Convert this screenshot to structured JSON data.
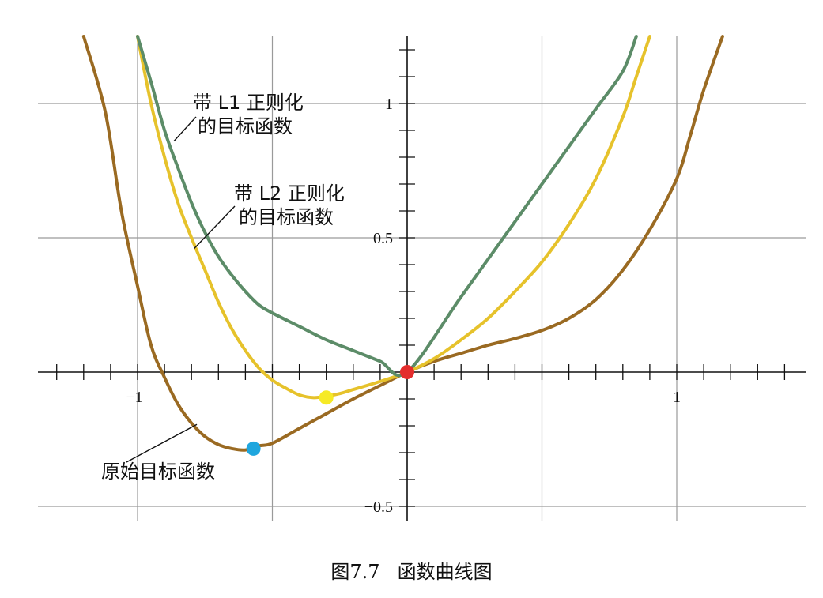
{
  "chart_data": {
    "type": "line",
    "title": "",
    "xlabel": "",
    "ylabel": "",
    "xlim": [
      -1.38,
      1.5
    ],
    "ylim": [
      -0.52,
      1.27
    ],
    "grid": true,
    "x_gridlines": [
      -1,
      -0.5,
      0,
      0.5,
      1
    ],
    "y_gridlines": [
      -0.5,
      0,
      0.5,
      1
    ],
    "x_tick_labels": [
      {
        "value": -1,
        "label": "−1"
      },
      {
        "value": 1,
        "label": "1"
      }
    ],
    "y_tick_labels": [
      {
        "value": 1,
        "label": "1"
      },
      {
        "value": 0.5,
        "label": "0.5"
      },
      {
        "value": -0.5,
        "label": "−0.5"
      }
    ],
    "series": [
      {
        "key": "original",
        "color": "#9a6a22",
        "x": [
          -1.2,
          -1.12,
          -1.06,
          -1.0,
          -0.95,
          -0.9,
          -0.85,
          -0.8,
          -0.75,
          -0.7,
          -0.65,
          -0.6,
          -0.55,
          -0.5,
          -0.4,
          -0.3,
          -0.2,
          -0.1,
          0.0,
          0.1,
          0.2,
          0.3,
          0.4,
          0.5,
          0.6,
          0.7,
          0.8,
          0.9,
          1.0,
          1.05,
          1.1,
          1.17
        ],
        "y": [
          1.25,
          0.97,
          0.6,
          0.32,
          0.1,
          -0.02,
          -0.12,
          -0.19,
          -0.24,
          -0.27,
          -0.285,
          -0.29,
          -0.275,
          -0.265,
          -0.21,
          -0.155,
          -0.1,
          -0.05,
          0.0,
          0.04,
          0.07,
          0.1,
          0.125,
          0.155,
          0.2,
          0.27,
          0.38,
          0.53,
          0.72,
          0.88,
          1.05,
          1.25
        ]
      },
      {
        "key": "l2",
        "color": "#e6c22b",
        "x": [
          -1.0,
          -0.95,
          -0.9,
          -0.85,
          -0.8,
          -0.75,
          -0.7,
          -0.65,
          -0.6,
          -0.55,
          -0.5,
          -0.45,
          -0.4,
          -0.35,
          -0.3,
          -0.25,
          -0.2,
          -0.1,
          0.0,
          0.1,
          0.2,
          0.3,
          0.4,
          0.5,
          0.6,
          0.7,
          0.8,
          0.85,
          0.9
        ],
        "y": [
          1.25,
          1.0,
          0.8,
          0.63,
          0.5,
          0.38,
          0.26,
          0.16,
          0.08,
          0.015,
          -0.03,
          -0.06,
          -0.085,
          -0.095,
          -0.09,
          -0.08,
          -0.065,
          -0.035,
          0.0,
          0.05,
          0.12,
          0.2,
          0.3,
          0.41,
          0.55,
          0.72,
          0.95,
          1.1,
          1.25
        ]
      },
      {
        "key": "l1",
        "color": "#5c8c68",
        "x": [
          -1.0,
          -0.95,
          -0.9,
          -0.85,
          -0.8,
          -0.75,
          -0.7,
          -0.65,
          -0.6,
          -0.55,
          -0.5,
          -0.4,
          -0.3,
          -0.2,
          -0.1,
          0.0,
          0.2,
          0.4,
          0.6,
          0.7,
          0.8,
          0.85
        ],
        "y": [
          1.25,
          1.08,
          0.9,
          0.76,
          0.63,
          0.52,
          0.43,
          0.36,
          0.3,
          0.25,
          0.22,
          0.17,
          0.12,
          0.08,
          0.04,
          0.0,
          0.28,
          0.56,
          0.84,
          0.98,
          1.12,
          1.25
        ]
      }
    ],
    "points": [
      {
        "x": 0.0,
        "y": 0.0,
        "color": "#e42d2d"
      },
      {
        "x": -0.3,
        "y": -0.095,
        "color": "#f6ea26"
      },
      {
        "x": -0.57,
        "y": -0.285,
        "color": "#1fa6de"
      }
    ],
    "annotations": [
      {
        "lines": [
          "带 L1 正则化",
          "的目标函数"
        ],
        "target_x": -0.865,
        "target_y": 0.86
      },
      {
        "lines": [
          "带 L2 正则化",
          "的目标函数"
        ],
        "target_x": -0.79,
        "target_y": 0.46
      },
      {
        "lines": [
          "原始目标函数"
        ],
        "target_x": -0.78,
        "target_y": -0.195
      }
    ]
  },
  "caption": {
    "figure_number": "图7.7",
    "title": "函数曲线图"
  }
}
